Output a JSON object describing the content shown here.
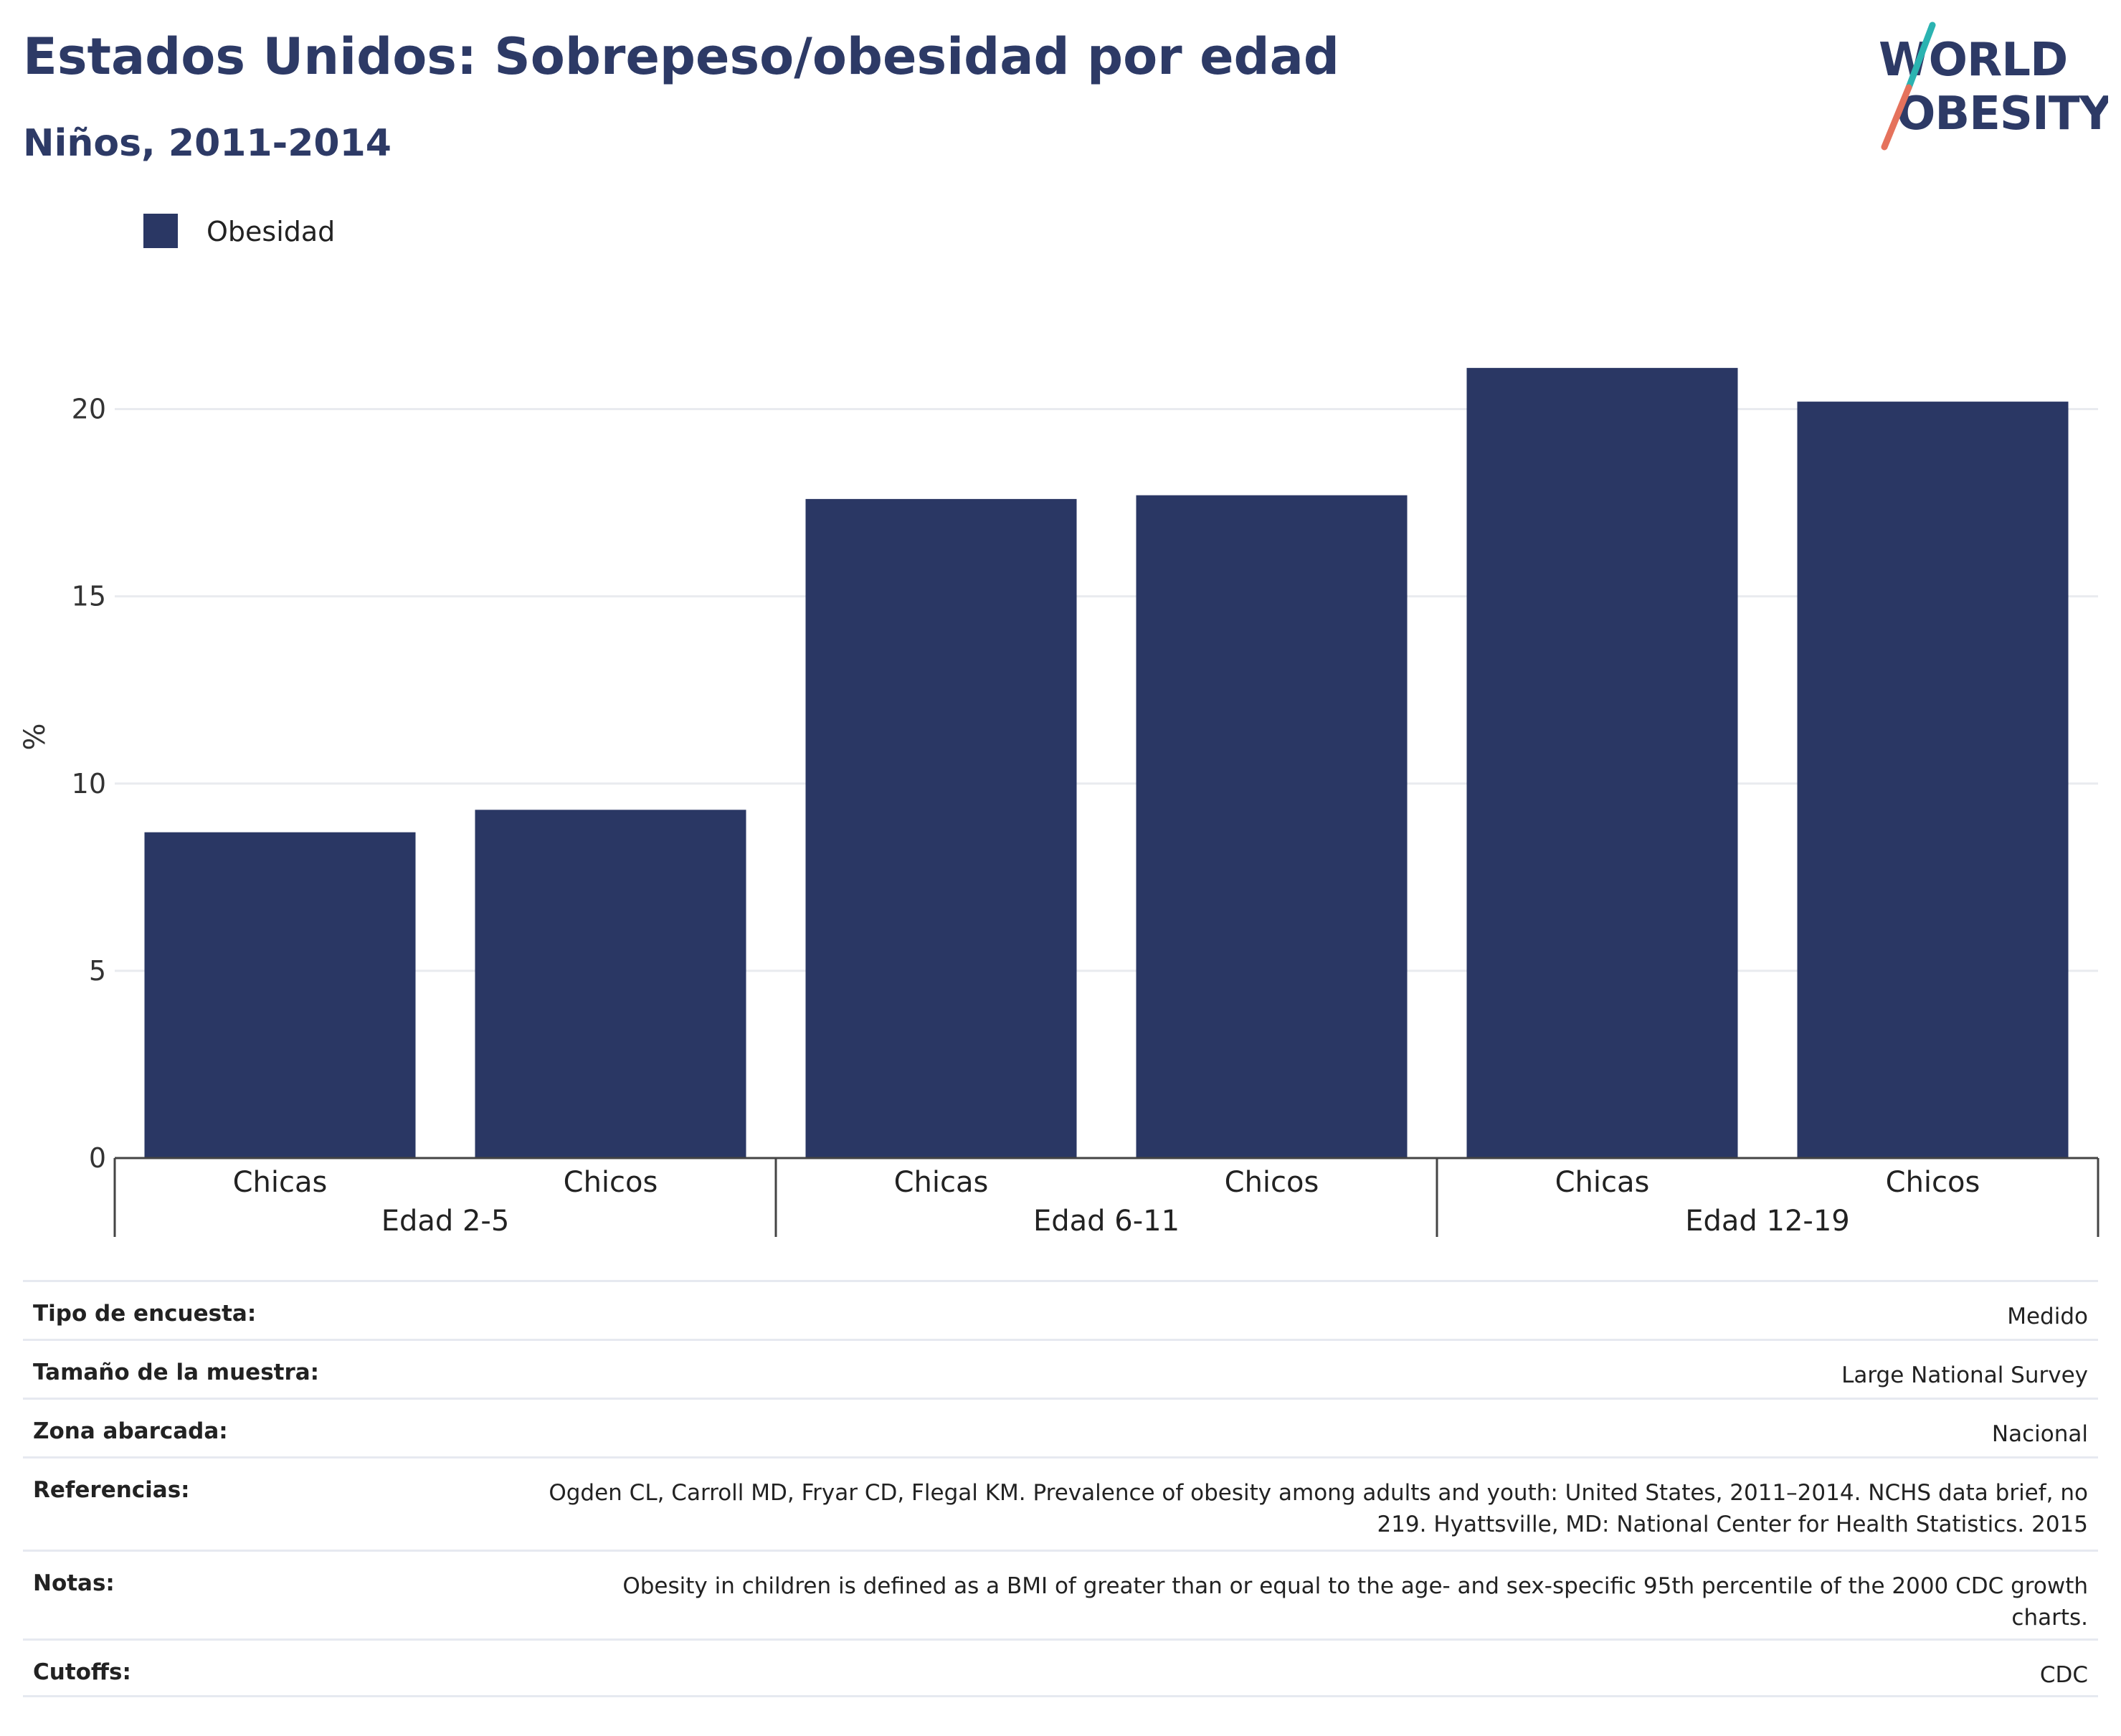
{
  "title": "Estados Unidos: Sobrepeso/obesidad por edad",
  "subtitle": "Niños, 2011-2014",
  "logo": {
    "line1": "WORLD",
    "line2": "OBESITY",
    "slash_teal": "#2bb3b1",
    "slash_coral": "#e5725c",
    "text_color": "#2d3a66"
  },
  "colors": {
    "bar": "#2a3764",
    "title": "#2d3a66",
    "grid": "#e9ebef",
    "axis": "#444444"
  },
  "chart_data": {
    "type": "bar",
    "ylabel": "%",
    "ylim": [
      0,
      22.5
    ],
    "yticks": [
      0,
      5,
      10,
      15,
      20
    ],
    "grid": true,
    "legend_position": "top-left",
    "series": [
      {
        "name": "Obesidad",
        "color": "#2a3764",
        "values": [
          8.7,
          9.3,
          17.6,
          17.7,
          21.1,
          20.2
        ]
      }
    ],
    "categories": [
      "Chicas",
      "Chicos",
      "Chicas",
      "Chicos",
      "Chicas",
      "Chicos"
    ],
    "groups": [
      "Edad 2-5",
      "Edad 6-11",
      "Edad 12-19"
    ]
  },
  "meta": [
    {
      "label": "Tipo de encuesta:",
      "value": "Medido"
    },
    {
      "label": "Tamaño de la muestra:",
      "value": "Large National Survey"
    },
    {
      "label": "Zona abarcada:",
      "value": "Nacional"
    },
    {
      "label": "Referencias:",
      "value": "Ogden CL, Carroll MD, Fryar CD, Flegal KM. Prevalence of obesity among adults and youth: United States, 2011–2014. NCHS data brief, no 219. Hyattsville, MD: National Center for Health Statistics. 2015"
    },
    {
      "label": "Notas:",
      "value": "Obesity in children is defined as a BMI of greater than or equal to the age- and sex-specific 95th percentile of the 2000 CDC growth charts."
    },
    {
      "label": "Cutoffs:",
      "value": "CDC"
    }
  ]
}
